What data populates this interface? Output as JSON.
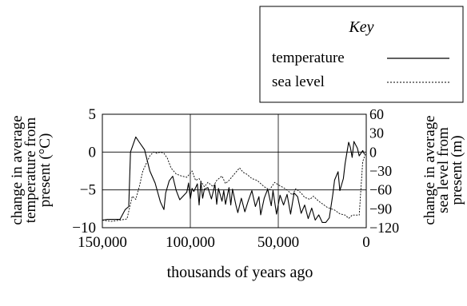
{
  "chart_data": {
    "type": "line",
    "xlabel": "thousands of years ago",
    "ylabel_left": "change in average temperature from present (°C)",
    "ylabel_right": "change in average sea level from present (m)",
    "ylabel_left_lines": [
      "change in average",
      "temperature from",
      "present (°C)"
    ],
    "ylabel_right_lines": [
      "change in average",
      "sea level from",
      "present (m)"
    ],
    "xlim": [
      150000,
      0
    ],
    "ylim_left": [
      -10,
      5
    ],
    "ylim_right": [
      -120,
      60
    ],
    "x_ticks": [
      150000,
      100000,
      50000,
      0
    ],
    "x_tick_labels": [
      "150,000",
      "100,000",
      "50,000",
      "0"
    ],
    "y_left_ticks": [
      5,
      0,
      -5,
      -10
    ],
    "y_left_tick_labels": [
      "5",
      "0",
      "−5",
      "−10"
    ],
    "y_right_ticks": [
      60,
      30,
      0,
      -30,
      -60,
      -90,
      -120
    ],
    "y_right_tick_labels": [
      "60",
      "30",
      "0",
      "−30",
      "−60",
      "−90",
      "−120"
    ],
    "grid": true,
    "legend_position": "top-right",
    "legend": {
      "title": "Key",
      "entries": [
        {
          "label": "temperature",
          "style": "solid"
        },
        {
          "label": "sea level",
          "style": "dashed"
        }
      ]
    },
    "series": [
      {
        "name": "temperature",
        "axis": "left",
        "style": "solid",
        "x": [
          150000,
          147000,
          140000,
          137000,
          135000,
          134000,
          131000,
          129000,
          126000,
          123000,
          120000,
          117000,
          115000,
          114000,
          112000,
          110000,
          108000,
          106000,
          104000,
          102000,
          101000,
          100000,
          99000,
          98000,
          96000,
          95000,
          94000,
          93000,
          92000,
          90000,
          88000,
          86000,
          85000,
          84000,
          82000,
          81000,
          80000,
          78000,
          77000,
          76000,
          74000,
          73000,
          71000,
          69000,
          67000,
          65000,
          63000,
          61000,
          60000,
          58000,
          56000,
          54000,
          53000,
          51000,
          49000,
          47000,
          45000,
          43000,
          41000,
          39000,
          37000,
          35000,
          33000,
          31000,
          29000,
          27000,
          25000,
          23000,
          21000,
          19000,
          18000,
          16000,
          15000,
          13000,
          12000,
          10000,
          9000,
          8000,
          7000,
          5000,
          4000,
          2000,
          1000
        ],
        "values": [
          -9,
          -8.9,
          -8.9,
          -7.6,
          -7.2,
          0,
          2,
          1.3,
          0.3,
          -2.5,
          -4.1,
          -6.6,
          -7.6,
          -5.4,
          -3.8,
          -3.2,
          -5.1,
          -6.3,
          -5.8,
          -5.3,
          -4.1,
          -6.2,
          -4.8,
          -5.2,
          -4.2,
          -7,
          -3.9,
          -6.1,
          -4.9,
          -4.7,
          -6.2,
          -4.3,
          -6.9,
          -4.8,
          -6.5,
          -5.1,
          -6.9,
          -4.7,
          -7,
          -4.9,
          -7.1,
          -8,
          -6.1,
          -7.9,
          -6.4,
          -5.1,
          -7.2,
          -5.9,
          -8.3,
          -6.1,
          -4.9,
          -7.1,
          -5.1,
          -8.2,
          -5.7,
          -7,
          -5.6,
          -8.2,
          -5.4,
          -5.9,
          -8.1,
          -7,
          -8.8,
          -7.4,
          -9,
          -8.3,
          -9.3,
          -9.3,
          -8.7,
          -5.6,
          -3.7,
          -2.6,
          -5.1,
          -3.5,
          -1.5,
          1.3,
          0.6,
          -0.7,
          1.4,
          0.5,
          -0.5,
          0.2,
          -0.3
        ]
      },
      {
        "name": "sea level",
        "axis": "right",
        "style": "dashed",
        "x": [
          150000,
          145000,
          140000,
          136000,
          133000,
          131000,
          129000,
          127000,
          125000,
          123000,
          121000,
          119000,
          117000,
          115000,
          113000,
          111000,
          108000,
          105000,
          102000,
          99000,
          97000,
          95000,
          92000,
          90000,
          87000,
          85000,
          82000,
          80000,
          78000,
          75000,
          72000,
          70000,
          68000,
          65000,
          62000,
          60000,
          58000,
          55000,
          52000,
          50000,
          48000,
          45000,
          42000,
          40000,
          37000,
          35000,
          32000,
          30000,
          27000,
          25000,
          22000,
          20000,
          18000,
          15000,
          12000,
          10000,
          9000,
          8000,
          6000,
          4000,
          2000,
          0
        ],
        "values": [
          -108,
          -110,
          -108,
          -106,
          -70,
          -75,
          -55,
          -30,
          -18,
          -6,
          0,
          -2,
          0,
          -2,
          -10,
          -25,
          -35,
          -38,
          -40,
          -30,
          -45,
          -42,
          -55,
          -48,
          -55,
          -45,
          -38,
          -50,
          -45,
          -35,
          -25,
          -32,
          -35,
          -42,
          -45,
          -50,
          -55,
          -60,
          -48,
          -52,
          -55,
          -60,
          -68,
          -58,
          -65,
          -72,
          -75,
          -70,
          -78,
          -82,
          -88,
          -90,
          -92,
          -98,
          -100,
          -105,
          -103,
          -100,
          -100,
          -100,
          -15,
          0
        ]
      }
    ]
  }
}
